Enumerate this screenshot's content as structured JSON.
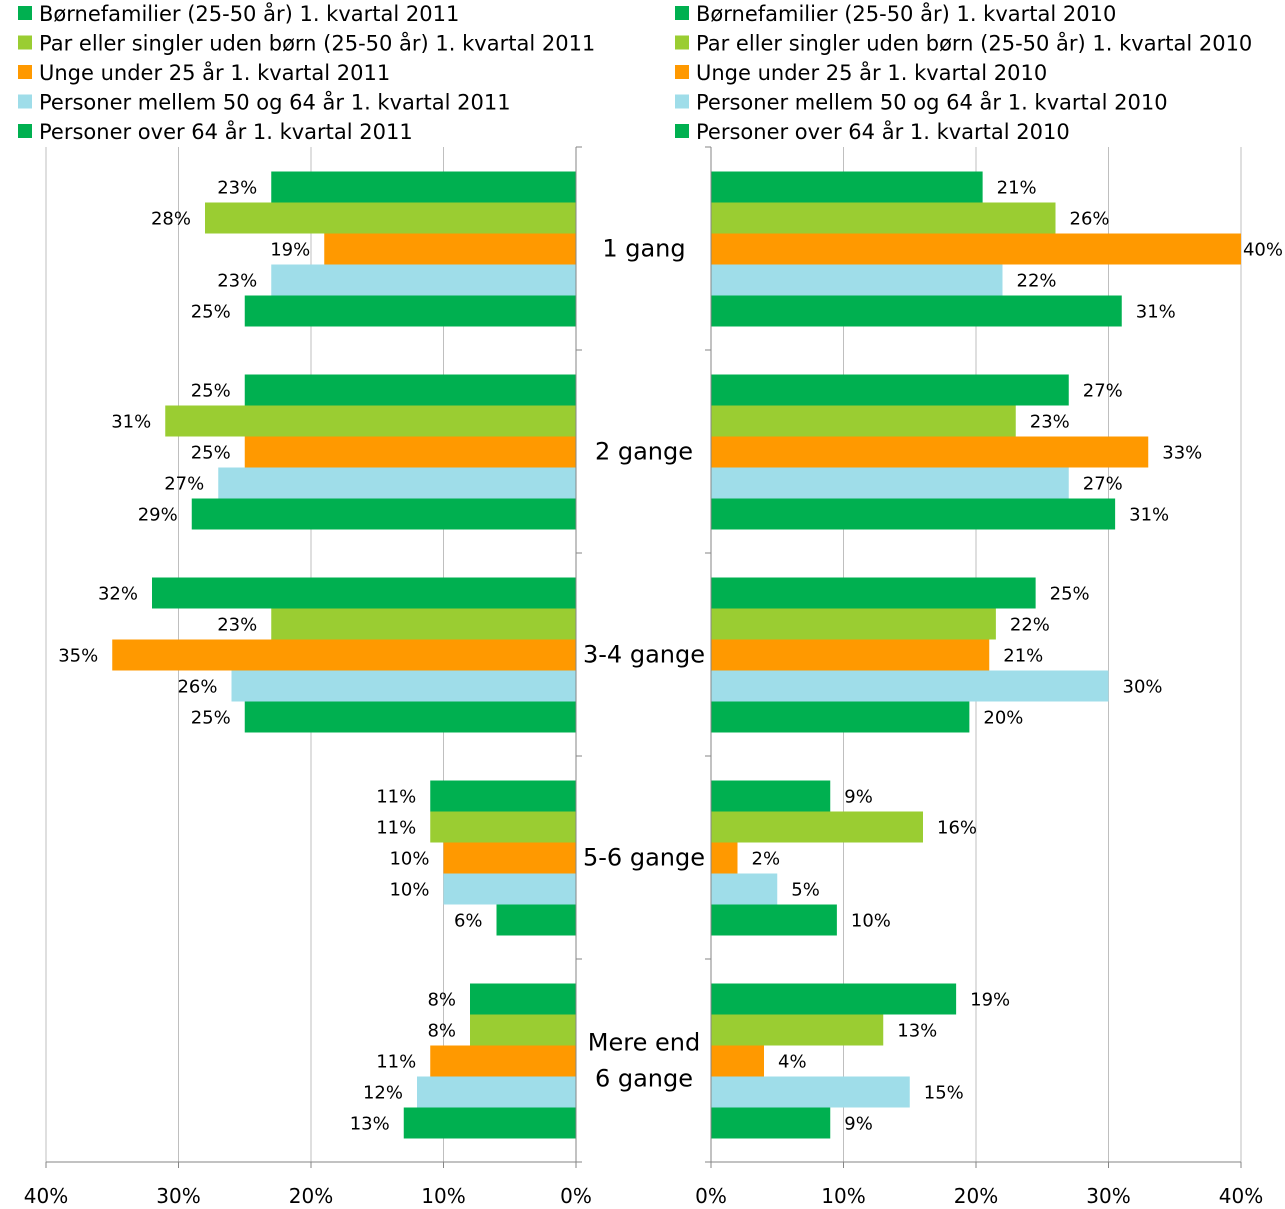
{
  "colors": {
    "born": "#00b050",
    "par": "#9acd32",
    "unge": "#ff9900",
    "personer50": "#9fdde9",
    "personer64": "#00b050",
    "grid": "#bfbfbf",
    "axis": "#868686"
  },
  "chart_data": [
    {
      "type": "bar",
      "orientation": "horizontal",
      "direction": "right-to-left",
      "categories": [
        "1 gang",
        "2 gange",
        "3-4 gange",
        "5-6 gange",
        "Mere end 6 gange"
      ],
      "series": [
        {
          "name": "Børnefamilier (25-50 år) 1. kvartal 2011",
          "color": "#00b050",
          "values": [
            23,
            25,
            32,
            11,
            8
          ]
        },
        {
          "name": "Par eller singler uden børn (25-50 år) 1. kvartal 2011",
          "color": "#9acd32",
          "values": [
            28,
            31,
            23,
            11,
            8
          ]
        },
        {
          "name": "Unge under 25 år 1. kvartal 2011",
          "color": "#ff9900",
          "values": [
            19,
            25,
            35,
            10,
            11
          ]
        },
        {
          "name": "Personer mellem 50 og 64 år 1. kvartal 2011",
          "color": "#9fdde9",
          "values": [
            23,
            27,
            26,
            10,
            12
          ]
        },
        {
          "name": "Personer over 64 år 1. kvartal 2011",
          "color": "#00b050",
          "values": [
            25,
            29,
            25,
            6,
            13
          ]
        }
      ],
      "data_labels": [
        [
          "23%",
          "25%",
          "32%",
          "11%",
          "8%"
        ],
        [
          "28%",
          "31%",
          "23%",
          "11%",
          "8%"
        ],
        [
          "19%",
          "25%",
          "35%",
          "10%",
          "11%"
        ],
        [
          "23%",
          "27%",
          "26%",
          "10%",
          "12%"
        ],
        [
          "25%",
          "29%",
          "25%",
          "6%",
          "13%"
        ]
      ],
      "xlim": [
        0,
        40
      ],
      "xticks": [
        "40%",
        "30%",
        "20%",
        "10%",
        "0%"
      ],
      "grid": true,
      "legend": "top-left"
    },
    {
      "type": "bar",
      "orientation": "horizontal",
      "direction": "left-to-right",
      "categories": [
        "1 gang",
        "2 gange",
        "3-4 gange",
        "5-6 gange",
        "Mere end 6 gange"
      ],
      "series": [
        {
          "name": "Børnefamilier (25-50 år) 1. kvartal 2010",
          "color": "#00b050",
          "values": [
            20.5,
            27,
            24.5,
            9,
            18.5
          ]
        },
        {
          "name": "Par eller singler uden børn (25-50 år) 1. kvartal 2010",
          "color": "#9acd32",
          "values": [
            26,
            23,
            21.5,
            16,
            13
          ]
        },
        {
          "name": "Unge under 25 år 1. kvartal 2010",
          "color": "#ff9900",
          "values": [
            40,
            33,
            21,
            2,
            4
          ]
        },
        {
          "name": "Personer mellem 50 og 64 år 1. kvartal 2010",
          "color": "#9fdde9",
          "values": [
            22,
            27,
            30,
            5,
            15
          ]
        },
        {
          "name": "Personer over 64 år 1. kvartal 2010",
          "color": "#00b050",
          "values": [
            31,
            30.5,
            19.5,
            9.5,
            9
          ]
        }
      ],
      "data_labels": [
        [
          "21%",
          "27%",
          "25%",
          "9%",
          "19%"
        ],
        [
          "26%",
          "23%",
          "22%",
          "16%",
          "13%"
        ],
        [
          "40%",
          "33%",
          "21%",
          "2%",
          "4%"
        ],
        [
          "22%",
          "27%",
          "30%",
          "5%",
          "15%"
        ],
        [
          "31%",
          "31%",
          "20%",
          "10%",
          "9%"
        ]
      ],
      "xlim": [
        0,
        40
      ],
      "xticks": [
        "0%",
        "10%",
        "20%",
        "30%",
        "40%"
      ],
      "grid": true,
      "legend": "top-right"
    }
  ],
  "category_labels": [
    [
      "1 gang"
    ],
    [
      "2 gange"
    ],
    [
      "3-4 gange"
    ],
    [
      "5-6 gange"
    ],
    [
      "Mere end",
      "6 gange"
    ]
  ]
}
